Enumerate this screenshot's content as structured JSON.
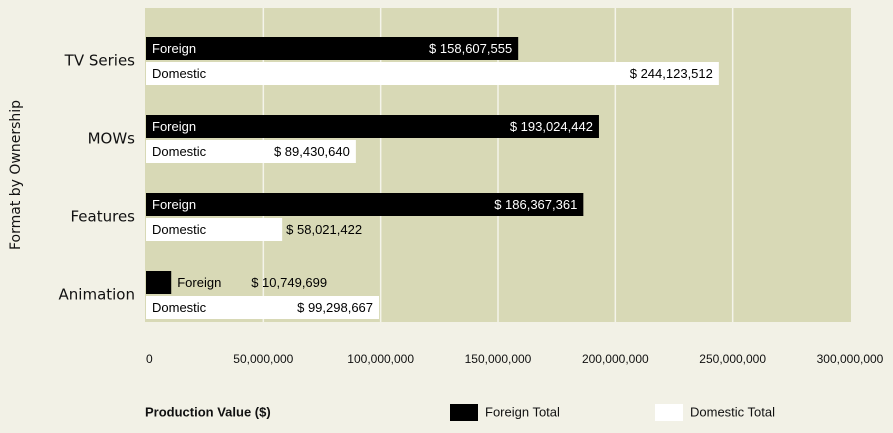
{
  "chart_data": {
    "type": "bar",
    "orientation": "horizontal",
    "y_label": "Format by Ownership",
    "x_label": "Production Value ($)",
    "categories": [
      "TV Series",
      "MOWs",
      "Features",
      "Animation"
    ],
    "series": [
      {
        "name": "Foreign Total",
        "bar_label": "Foreign",
        "color": "#000000",
        "values": [
          158607555,
          193024442,
          186367361,
          10749699
        ],
        "value_labels": [
          "$ 158,607,555",
          "$ 193,024,442",
          "$ 186,367,361",
          "$ 10,749,699"
        ]
      },
      {
        "name": "Domestic Total",
        "bar_label": "Domestic",
        "color": "#ffffff",
        "values": [
          244123512,
          89430640,
          58021422,
          99298667
        ],
        "value_labels": [
          "$ 244,123,512",
          "$ 89,430,640",
          "$ 58,021,422",
          "$ 99,298,667"
        ]
      }
    ],
    "xlim": [
      0,
      300000000
    ],
    "xticks": [
      0,
      {
        "value": 50000000,
        "label": "50,000,000"
      },
      {
        "value": 100000000,
        "label": "100,000,000"
      },
      {
        "value": 150000000,
        "label": "150,000,000"
      },
      {
        "value": 200000000,
        "label": "200,000,000"
      },
      {
        "value": 250000000,
        "label": "250,000,000"
      },
      {
        "value": 300000000,
        "label": "300,000,000"
      }
    ],
    "grid": true,
    "plot_background": "#d8d9b6",
    "legend": "bottom"
  }
}
